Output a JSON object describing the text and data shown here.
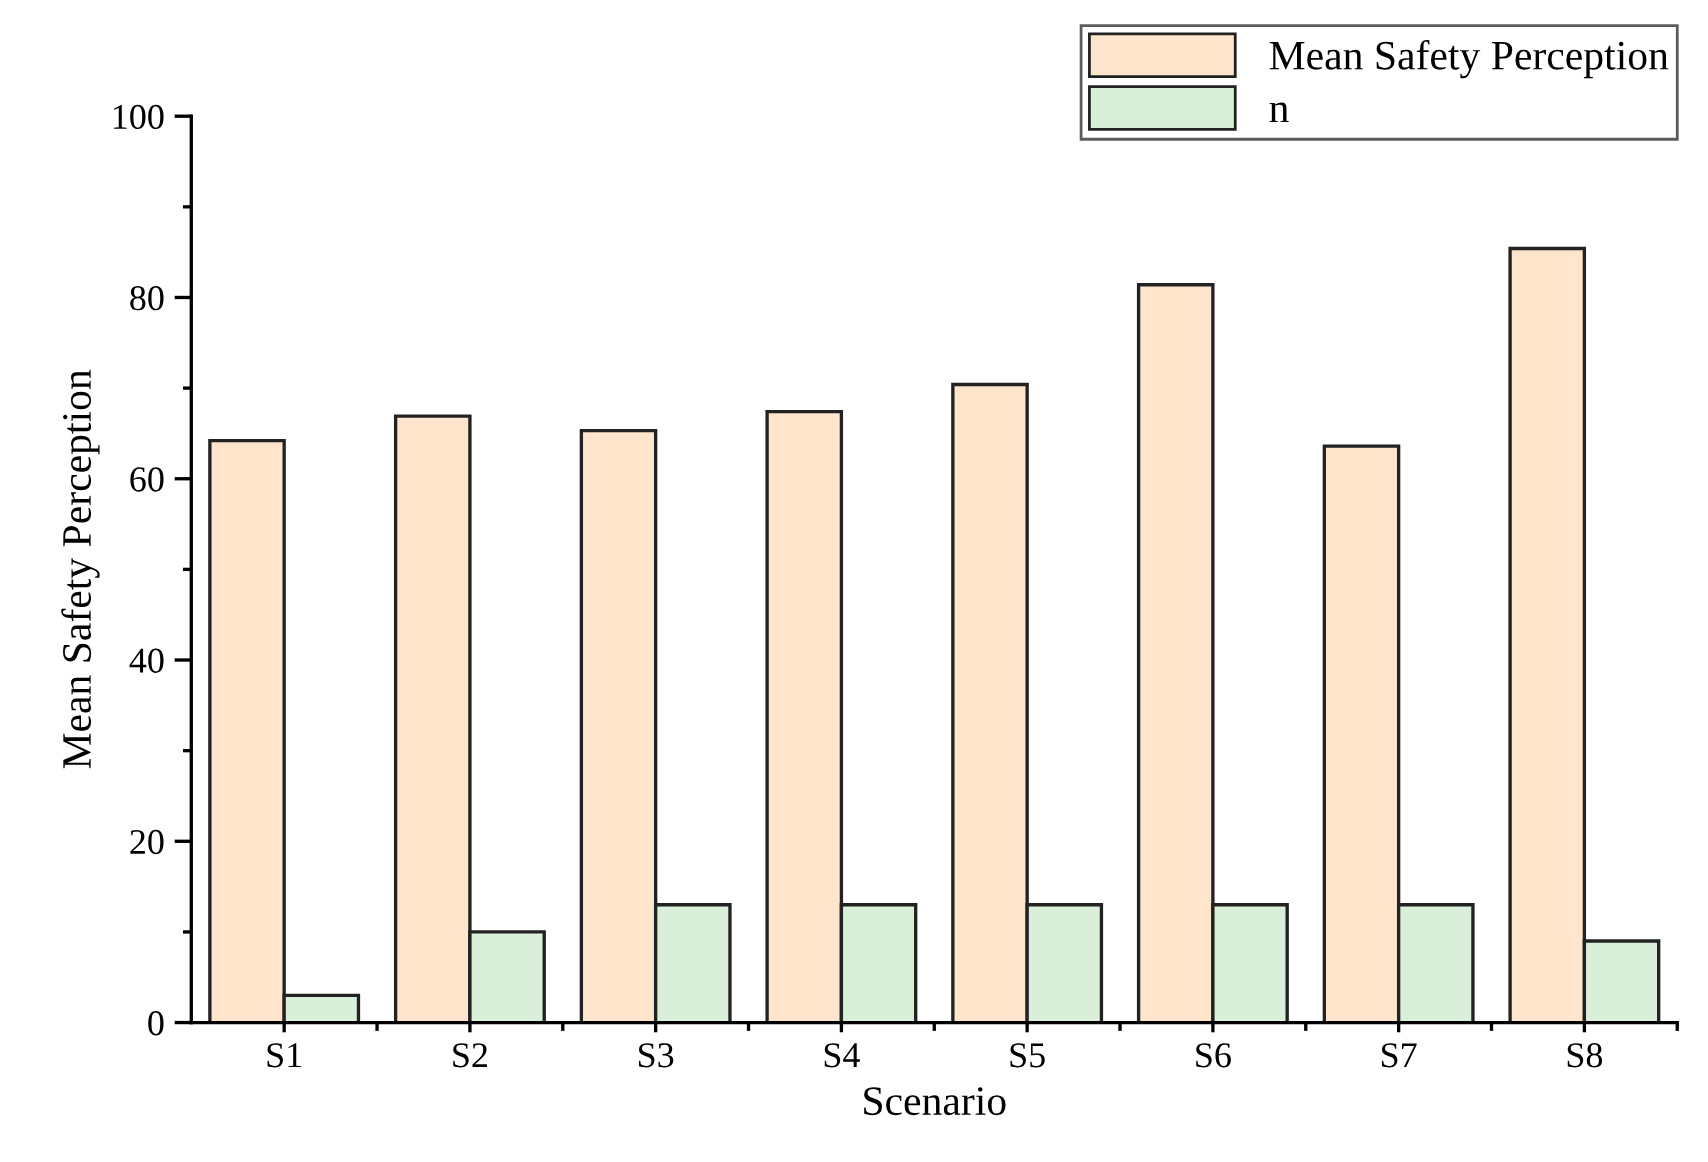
{
  "chart_data": {
    "type": "bar",
    "xlabel": "Scenario",
    "ylabel": "Mean Safety Perception",
    "categories": [
      "S1",
      "S2",
      "S3",
      "S4",
      "S5",
      "S6",
      "S7",
      "S8"
    ],
    "series": [
      {
        "name": "Mean Safety Perception",
        "color": "#ffe5cc",
        "values": [
          64.2,
          66.9,
          65.3,
          67.4,
          70.4,
          81.4,
          63.6,
          85.4
        ]
      },
      {
        "name": "n",
        "color": "#d9efd9",
        "values": [
          3,
          10,
          13,
          13,
          13,
          13,
          13,
          9
        ]
      }
    ],
    "ylim": [
      0,
      100
    ],
    "yticks": [
      0,
      {
        "value": 10,
        "label": null
      },
      20,
      {
        "value": 30,
        "label": null
      },
      40,
      {
        "value": 50,
        "label": null
      },
      60,
      {
        "value": 70,
        "label": null
      },
      80,
      {
        "value": 90,
        "label": null
      },
      100
    ],
    "grid": false,
    "legend": "top right"
  }
}
